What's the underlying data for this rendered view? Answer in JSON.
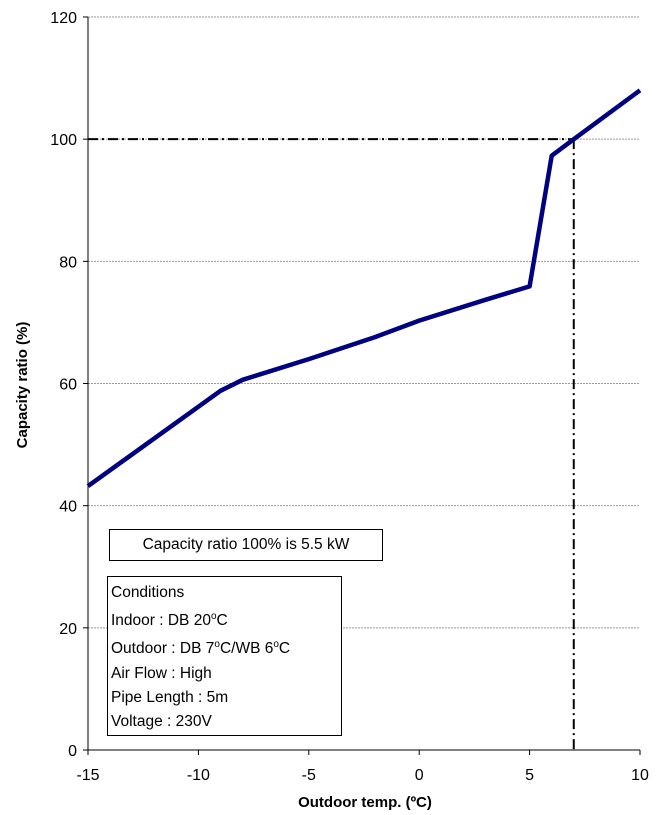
{
  "chart_data": {
    "type": "line",
    "xlabel": "Outdoor temp. (ºC)",
    "ylabel": "Capacity ratio (%)",
    "xlim": [
      -15,
      10
    ],
    "ylim": [
      0,
      120
    ],
    "x_ticks": [
      "-15",
      "-10",
      "-5",
      "0",
      "5",
      "10"
    ],
    "y_ticks": [
      "0",
      "20",
      "40",
      "60",
      "80",
      "100",
      "120"
    ],
    "grid": "horizontal",
    "series": [
      {
        "color": "#000080",
        "x": [
          -15,
          -9,
          -8,
          -5,
          -2,
          0,
          3,
          5,
          6,
          7,
          10
        ],
        "y": [
          43.2,
          58.8,
          60.6,
          64.0,
          67.6,
          70.3,
          73.7,
          75.9,
          97.3,
          100,
          108
        ]
      }
    ],
    "reference_lines": [
      {
        "orientation": "horizontal",
        "value": 100,
        "style": "dash-dot"
      },
      {
        "orientation": "vertical",
        "value": 7,
        "style": "dash-dot"
      }
    ]
  },
  "annotations": {
    "capacity_note": "Capacity ratio 100% is 5.5 kW",
    "conditions": {
      "title": "Conditions",
      "indoor_prefix": "Indoor : DB 20",
      "indoor_suffix": "C",
      "outdoor_prefix": "Outdoor : DB 7",
      "outdoor_mid": "C/WB 6",
      "outdoor_suffix": "C",
      "degree_mark": "o",
      "air_flow": "Air Flow : High",
      "pipe_length": "Pipe Length : 5m",
      "voltage": "Voltage : 230V"
    }
  }
}
